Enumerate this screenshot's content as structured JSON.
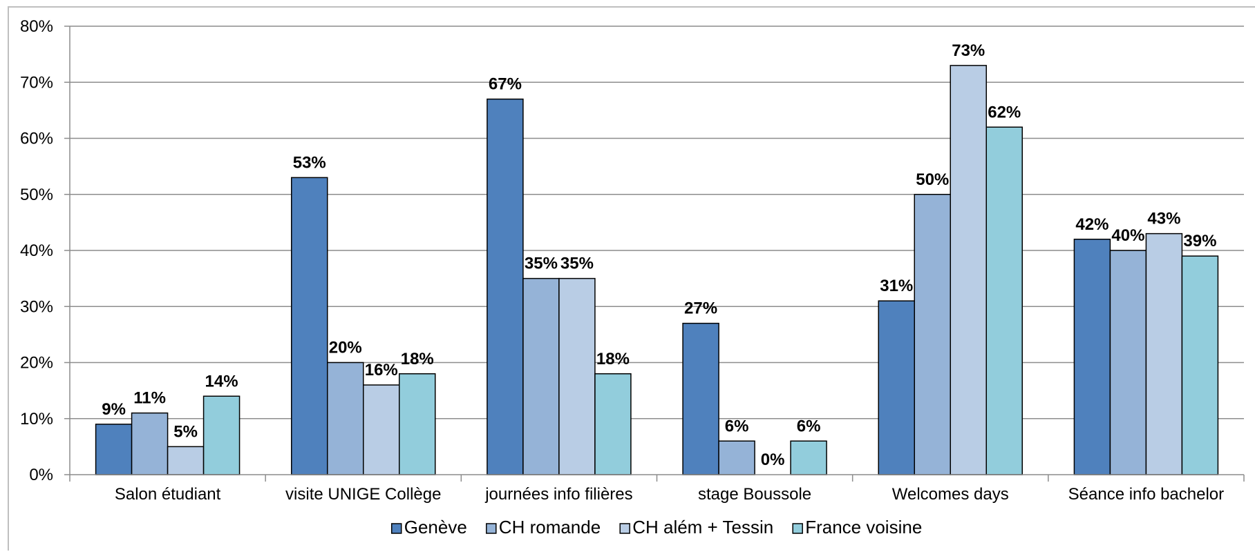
{
  "chart_data": {
    "type": "bar",
    "categories": [
      "Salon étudiant",
      "visite UNIGE Collège",
      "journées info filières",
      "stage Boussole",
      "Welcomes days",
      "Séance info bachelor"
    ],
    "series": [
      {
        "name": "Genève",
        "values": [
          9,
          53,
          67,
          27,
          31,
          42
        ],
        "color": "#4f81bd"
      },
      {
        "name": "CH romande",
        "values": [
          11,
          20,
          35,
          6,
          50,
          40
        ],
        "color": "#95b3d7"
      },
      {
        "name": "CH além + Tessin",
        "values": [
          5,
          16,
          35,
          0,
          73,
          43
        ],
        "color": "#b9cde5"
      },
      {
        "name": "France voisine",
        "values": [
          14,
          18,
          18,
          6,
          62,
          39
        ],
        "color": "#92cddc"
      }
    ],
    "y_ticks": [
      "0%",
      "10%",
      "20%",
      "30%",
      "40%",
      "50%",
      "60%",
      "70%",
      "80%"
    ],
    "ylim": [
      0,
      80
    ],
    "y_unit": "%",
    "grid": true,
    "legend_position": "bottom",
    "title": "",
    "xlabel": "",
    "ylabel": ""
  }
}
